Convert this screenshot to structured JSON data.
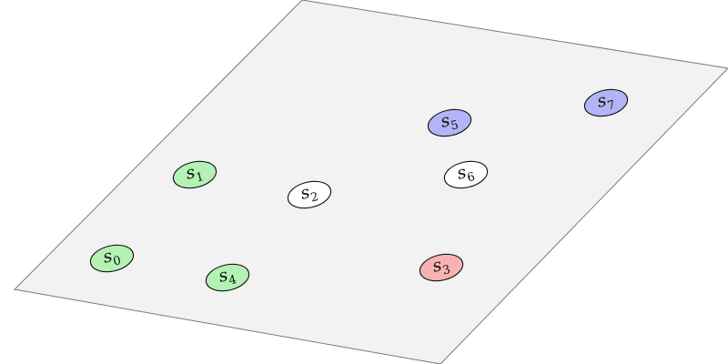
{
  "diagram": {
    "nodes": [
      {
        "id": "s0",
        "name": "s",
        "sub": "0",
        "color": "#b3f2b3"
      },
      {
        "id": "s1",
        "name": "s",
        "sub": "1",
        "color": "#b3f2b3"
      },
      {
        "id": "s2",
        "name": "s",
        "sub": "2",
        "color": "#ffffff"
      },
      {
        "id": "s3",
        "name": "s",
        "sub": "3",
        "color": "#f7b3b3"
      },
      {
        "id": "s4",
        "name": "s",
        "sub": "4",
        "color": "#b3f2b3"
      },
      {
        "id": "s5",
        "name": "s",
        "sub": "5",
        "color": "#b3b3f7"
      },
      {
        "id": "s6",
        "name": "s",
        "sub": "6",
        "color": "#ffffff"
      },
      {
        "id": "s7",
        "name": "s",
        "sub": "7",
        "color": "#b3b3f7"
      }
    ]
  },
  "colors": {
    "plane_fill": "#f2f2f2",
    "plane_stroke": "#7a7a7a",
    "node_stroke": "#111111"
  }
}
